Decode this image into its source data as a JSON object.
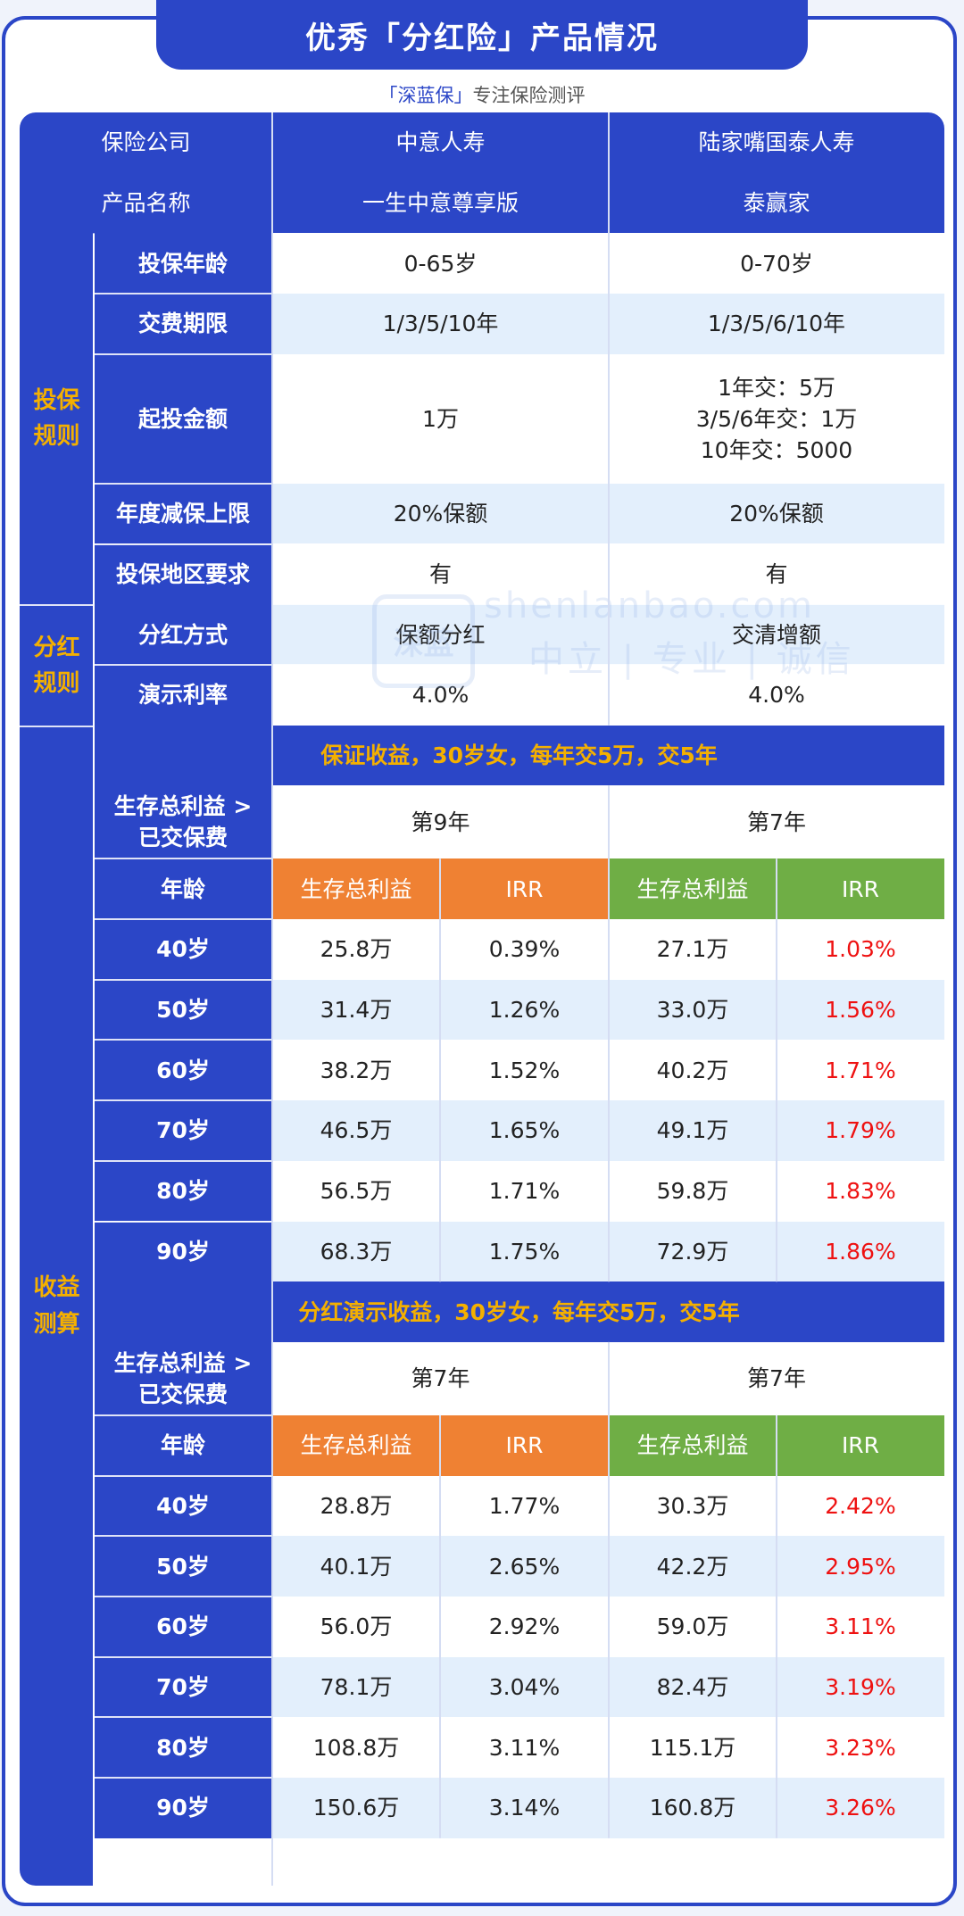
{
  "header": {
    "title": "优秀「分红险」产品情况"
  },
  "subtitle": {
    "brand": "「深蓝保」",
    "tagline": "专注保险测评"
  },
  "watermark": {
    "logo_text": "深蓝",
    "domain": "shenlanbao.com",
    "slogan": "中立 | 专业 | 诚信"
  },
  "table": {
    "company_label": "保险公司",
    "product_label": "产品名称",
    "companies": [
      "中意人寿",
      "陆家嘴国泰人寿"
    ],
    "products": [
      "一生中意尊享版",
      "泰赢家"
    ],
    "groups": {
      "rules": {
        "line1": "投保",
        "line2": "规则"
      },
      "dividend": {
        "line1": "分红",
        "line2": "规则"
      },
      "calc": {
        "line1": "收益",
        "line2": "测算"
      }
    },
    "rule_rows": [
      {
        "label": "投保年龄",
        "a": "0-65岁",
        "b": "0-70岁"
      },
      {
        "label": "交费期限",
        "a": "1/3/5/10年",
        "b": "1/3/5/6/10年"
      },
      {
        "label": "起投金额",
        "a": "1万",
        "b_lines": [
          "1年交：5万",
          "3/5/6年交：1万",
          "10年交：5000"
        ]
      },
      {
        "label": "年度减保上限",
        "a": "20%保额",
        "b": "20%保额"
      },
      {
        "label": "投保地区要求",
        "a": "有",
        "b": "有"
      }
    ],
    "dividend_rows": [
      {
        "label": "分红方式",
        "a": "保额分红",
        "b": "交清增额"
      },
      {
        "label": "演示利率",
        "a": "4.0%",
        "b": "4.0%"
      }
    ],
    "sections": [
      {
        "band": "保证收益，30岁女，每年交5万，交5年",
        "break_label_1": "生存总利益 >",
        "break_label_2": "已交保费",
        "break_a": "第9年",
        "break_b": "第7年",
        "age_label": "年龄",
        "col_benefit": "生存总利益",
        "col_irr": "IRR",
        "rows": [
          {
            "age": "40岁",
            "a_benefit": "25.8万",
            "a_irr": "0.39%",
            "b_benefit": "27.1万",
            "b_irr": "1.03%"
          },
          {
            "age": "50岁",
            "a_benefit": "31.4万",
            "a_irr": "1.26%",
            "b_benefit": "33.0万",
            "b_irr": "1.56%"
          },
          {
            "age": "60岁",
            "a_benefit": "38.2万",
            "a_irr": "1.52%",
            "b_benefit": "40.2万",
            "b_irr": "1.71%"
          },
          {
            "age": "70岁",
            "a_benefit": "46.5万",
            "a_irr": "1.65%",
            "b_benefit": "49.1万",
            "b_irr": "1.79%"
          },
          {
            "age": "80岁",
            "a_benefit": "56.5万",
            "a_irr": "1.71%",
            "b_benefit": "59.8万",
            "b_irr": "1.83%"
          },
          {
            "age": "90岁",
            "a_benefit": "68.3万",
            "a_irr": "1.75%",
            "b_benefit": "72.9万",
            "b_irr": "1.86%"
          }
        ]
      },
      {
        "band": "分红演示收益，30岁女，每年交5万，交5年",
        "break_label_1": "生存总利益 >",
        "break_label_2": "已交保费",
        "break_a": "第7年",
        "break_b": "第7年",
        "age_label": "年龄",
        "col_benefit": "生存总利益",
        "col_irr": "IRR",
        "rows": [
          {
            "age": "40岁",
            "a_benefit": "28.8万",
            "a_irr": "1.77%",
            "b_benefit": "30.3万",
            "b_irr": "2.42%"
          },
          {
            "age": "50岁",
            "a_benefit": "40.1万",
            "a_irr": "2.65%",
            "b_benefit": "42.2万",
            "b_irr": "2.95%"
          },
          {
            "age": "60岁",
            "a_benefit": "56.0万",
            "a_irr": "2.92%",
            "b_benefit": "59.0万",
            "b_irr": "3.11%"
          },
          {
            "age": "70岁",
            "a_benefit": "78.1万",
            "a_irr": "3.04%",
            "b_benefit": "82.4万",
            "b_irr": "3.19%"
          },
          {
            "age": "80岁",
            "a_benefit": "108.8万",
            "a_irr": "3.11%",
            "b_benefit": "115.1万",
            "b_irr": "3.23%"
          },
          {
            "age": "90岁",
            "a_benefit": "150.6万",
            "a_irr": "3.14%",
            "b_benefit": "160.8万",
            "b_irr": "3.26%"
          }
        ]
      }
    ]
  },
  "colors": {
    "brand_blue": "#2b46c7",
    "accent_gold": "#f4b000",
    "orange": "#ef8133",
    "green": "#6fae45",
    "irr_red": "#ee1111",
    "light_row": "#e3effc"
  }
}
